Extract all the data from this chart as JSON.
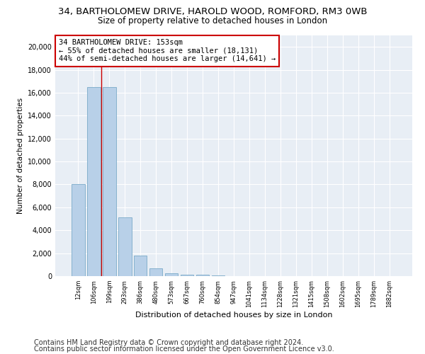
{
  "title1": "34, BARTHOLOMEW DRIVE, HAROLD WOOD, ROMFORD, RM3 0WB",
  "title2": "Size of property relative to detached houses in London",
  "xlabel": "Distribution of detached houses by size in London",
  "ylabel": "Number of detached properties",
  "categories": [
    "12sqm",
    "106sqm",
    "199sqm",
    "293sqm",
    "386sqm",
    "480sqm",
    "573sqm",
    "667sqm",
    "760sqm",
    "854sqm",
    "947sqm",
    "1041sqm",
    "1134sqm",
    "1228sqm",
    "1321sqm",
    "1415sqm",
    "1508sqm",
    "1602sqm",
    "1695sqm",
    "1789sqm",
    "1882sqm"
  ],
  "values": [
    8000,
    16500,
    16500,
    5100,
    1800,
    650,
    250,
    150,
    100,
    50,
    30,
    0,
    0,
    0,
    0,
    0,
    0,
    0,
    0,
    0,
    0
  ],
  "bar_color": "#b8d0e8",
  "bar_edge_color": "#7aaac8",
  "vline_x": 1.47,
  "vline_color": "#cc0000",
  "annotation_text": "34 BARTHOLOMEW DRIVE: 153sqm\n← 55% of detached houses are smaller (18,131)\n44% of semi-detached houses are larger (14,641) →",
  "annotation_box_color": "#ffffff",
  "annotation_box_edge_color": "#cc0000",
  "ylim": [
    0,
    21000
  ],
  "yticks": [
    0,
    2000,
    4000,
    6000,
    8000,
    10000,
    12000,
    14000,
    16000,
    18000,
    20000
  ],
  "footer1": "Contains HM Land Registry data © Crown copyright and database right 2024.",
  "footer2": "Contains public sector information licensed under the Open Government Licence v3.0.",
  "plot_bg_color": "#e8eef5",
  "title1_fontsize": 9.5,
  "title2_fontsize": 8.5,
  "annotation_fontsize": 7.5,
  "footer_fontsize": 7,
  "ylabel_fontsize": 7.5,
  "xlabel_fontsize": 8,
  "ytick_fontsize": 7,
  "xtick_fontsize": 6
}
